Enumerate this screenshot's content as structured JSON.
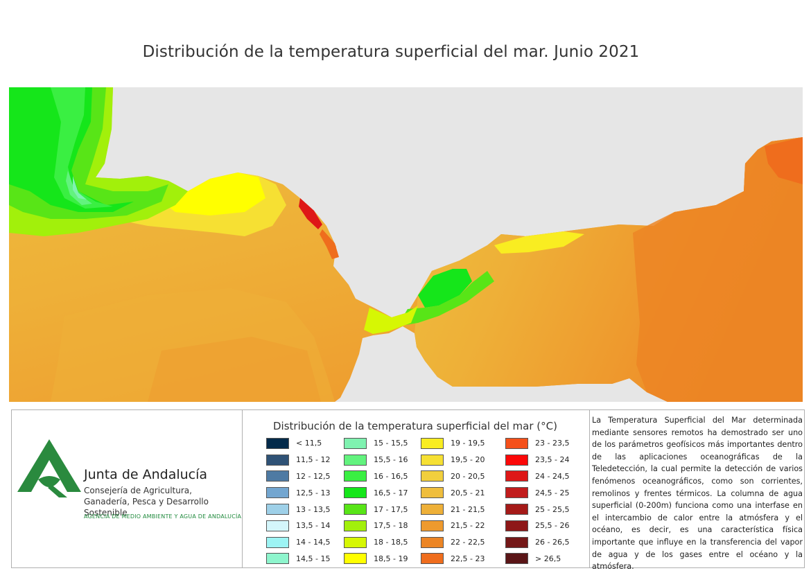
{
  "title": "Distribución de la temperatura superficial del mar. Junio 2021",
  "colors": {
    "land": "#e6e6e6",
    "logo_green": "#2a8a3e"
  },
  "organization": {
    "name": "Junta de Andalucía",
    "department": "Consejería de Agricultura, Ganadería, Pesca y Desarrollo Sostenible",
    "agency": "AGENCIA DE MEDIO AMBIENTE Y AGUA DE ANDALUCÍA"
  },
  "legend": {
    "title": "Distribución de la temperatura superficial del mar (°C)",
    "columns": [
      [
        {
          "label": "< 11,5",
          "color": "#032a4a"
        },
        {
          "label": "11,5 - 12",
          "color": "#2f5276"
        },
        {
          "label": "12 - 12,5",
          "color": "#4e7aa3"
        },
        {
          "label": "12,5 - 13",
          "color": "#73a6d0"
        },
        {
          "label": "13 - 13,5",
          "color": "#9ed0e8"
        },
        {
          "label": "13,5 - 14",
          "color": "#d4f6fb"
        },
        {
          "label": "14 - 14,5",
          "color": "#9df4f4"
        },
        {
          "label": "14,5 - 15",
          "color": "#8ef5cd"
        }
      ],
      [
        {
          "label": "15 - 15,5",
          "color": "#7ff2b0"
        },
        {
          "label": "15,5 - 16",
          "color": "#62f37e"
        },
        {
          "label": "16 - 16,5",
          "color": "#3aef42"
        },
        {
          "label": "16,5 - 17",
          "color": "#15e61a"
        },
        {
          "label": "17 - 17,5",
          "color": "#58e517"
        },
        {
          "label": "17,5 - 18",
          "color": "#a2f00b"
        },
        {
          "label": "18 - 18,5",
          "color": "#d6f704"
        },
        {
          "label": "18,5 - 19",
          "color": "#ffff00"
        }
      ],
      [
        {
          "label": "19 - 19,5",
          "color": "#f9ed21"
        },
        {
          "label": "19,5 - 20",
          "color": "#f6e033"
        },
        {
          "label": "20 - 20,5",
          "color": "#f1cf3d"
        },
        {
          "label": "20,5 - 21",
          "color": "#efbe3d"
        },
        {
          "label": "21 - 21,5",
          "color": "#eeb038"
        },
        {
          "label": "21,5 - 22",
          "color": "#ee9a2e"
        },
        {
          "label": "22 - 22,5",
          "color": "#ec8525"
        },
        {
          "label": "22,5 - 23",
          "color": "#ef6d1d"
        }
      ],
      [
        {
          "label": "23 - 23,5",
          "color": "#f5501a"
        },
        {
          "label": "23,5 - 24",
          "color": "#fc0808"
        },
        {
          "label": "24 - 24,5",
          "color": "#de1717"
        },
        {
          "label": "24,5 - 25",
          "color": "#c11c1c"
        },
        {
          "label": "25 - 25,5",
          "color": "#a51a18"
        },
        {
          "label": "25,5 - 26",
          "color": "#8e1718"
        },
        {
          "label": "26 - 26,5",
          "color": "#741818"
        },
        {
          "label": "> 26,5",
          "color": "#5a1517"
        }
      ]
    ]
  },
  "description": "La Temperatura Superficial del Mar determinada mediante sensores remotos ha demostrado ser uno de los parámetros geofísicos más importantes dentro de las aplicaciones oceanográficas de la Teledetección, la cual permite la detección de varios fenómenos oceanográficos, como son corrientes, remolinos y frentes térmicos. La columna de agua superficial (0-200m) funciona como una interfase en el intercambio de calor entre la atmósfera y el océano, es decir, es una característica física importante que influye en la transferencia del vapor de agua y de los gases entre el océano y la atmósfera."
}
